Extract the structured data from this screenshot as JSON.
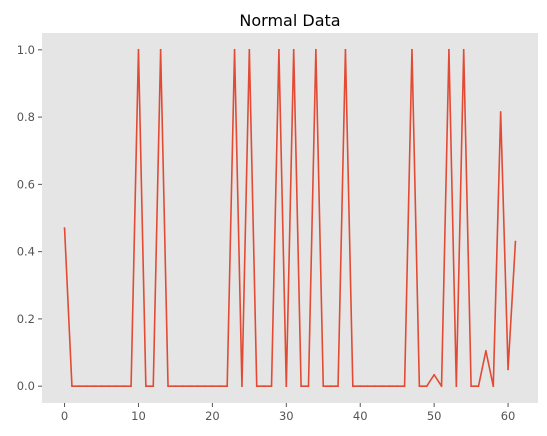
{
  "chart_data": {
    "type": "line",
    "title": "Normal Data",
    "xlabel": "",
    "ylabel": "",
    "xlim": [
      -3.05,
      64.05
    ],
    "ylim": [
      -0.05,
      1.05
    ],
    "grid": false,
    "legend": "none",
    "colors": {
      "background": "#e5e5e5",
      "line": "#e24a33",
      "tick": "#555555"
    },
    "x_ticks": [
      0,
      10,
      20,
      30,
      40,
      50,
      60
    ],
    "x_tick_labels": [
      "0",
      "10",
      "20",
      "30",
      "40",
      "50",
      "60"
    ],
    "y_ticks": [
      0.0,
      0.2,
      0.4,
      0.6,
      0.8,
      1.0
    ],
    "y_tick_labels": [
      "0.0",
      "0.2",
      "0.4",
      "0.6",
      "0.8",
      "1.0"
    ],
    "series": [
      {
        "x": [
          0,
          1,
          2,
          3,
          4,
          5,
          6,
          7,
          8,
          9,
          10,
          11,
          12,
          13,
          14,
          15,
          16,
          17,
          18,
          19,
          20,
          21,
          22,
          23,
          24,
          25,
          26,
          27,
          28,
          29,
          30,
          31,
          32,
          33,
          34,
          35,
          36,
          37,
          38,
          39,
          40,
          41,
          42,
          43,
          44,
          45,
          46,
          47,
          48,
          49,
          50,
          51,
          52,
          53,
          54,
          55,
          56,
          57,
          58,
          59,
          60,
          61
        ],
        "values": [
          0.47,
          0,
          0,
          0,
          0,
          0,
          0,
          0,
          0,
          0,
          1,
          0,
          0,
          1,
          0,
          0,
          0,
          0,
          0,
          0,
          0,
          0,
          0,
          1,
          0,
          1,
          0,
          0,
          0,
          1,
          0,
          1,
          0,
          0,
          1,
          0,
          0,
          0,
          1,
          0,
          0,
          0,
          0,
          0,
          0,
          0,
          0,
          1,
          0,
          0,
          0.034,
          0,
          1,
          0,
          1,
          0,
          0,
          0.105,
          0,
          0.815,
          0.05,
          0.43
        ]
      }
    ]
  }
}
